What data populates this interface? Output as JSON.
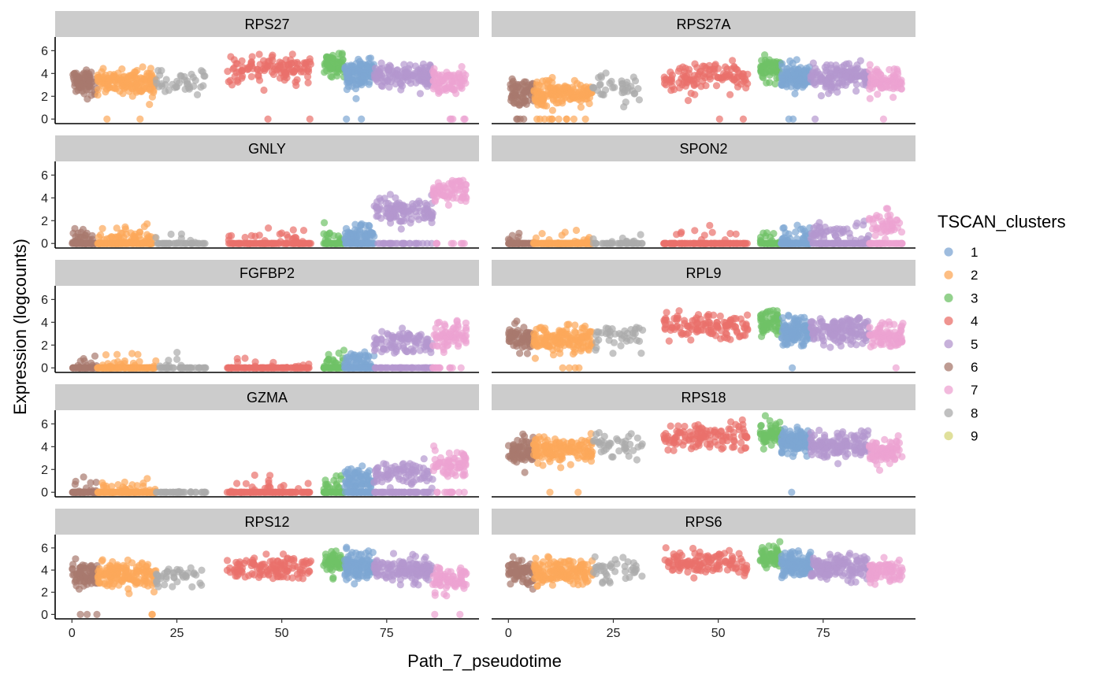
{
  "chart_data": {
    "type": "scatter",
    "xlabel": "Path_7_pseudotime",
    "ylabel": "Expression (logcounts)",
    "xlim": [
      -4,
      97
    ],
    "ylim": [
      -0.4,
      7.2
    ],
    "x_ticks": [
      0,
      25,
      50,
      75
    ],
    "y_ticks": [
      0,
      2,
      4,
      6
    ],
    "grid": false,
    "legend": {
      "title": "TSCAN_clusters",
      "position": "right",
      "entries": [
        {
          "label": "1",
          "color": "#7ea6d3"
        },
        {
          "label": "2",
          "color": "#fca85a"
        },
        {
          "label": "3",
          "color": "#6fc267"
        },
        {
          "label": "4",
          "color": "#e9706b"
        },
        {
          "label": "5",
          "color": "#b497ce"
        },
        {
          "label": "6",
          "color": "#a8796d"
        },
        {
          "label": "7",
          "color": "#eda3d2"
        },
        {
          "label": "8",
          "color": "#ababab"
        },
        {
          "label": "9",
          "color": "#d6d67a"
        }
      ]
    },
    "cluster_x_ranges": {
      "6": [
        0,
        6
      ],
      "2": [
        6,
        20
      ],
      "8": [
        20,
        32
      ],
      "4": [
        37,
        57
      ],
      "3": [
        60,
        65
      ],
      "1": [
        65,
        72
      ],
      "5": [
        72,
        86
      ],
      "7": [
        86,
        94
      ]
    },
    "panels": [
      {
        "title": "RPS27",
        "means": {
          "6": 3.2,
          "2": 3.2,
          "8": 3.3,
          "4": 4.4,
          "3": 4.6,
          "1": 4.0,
          "5": 3.8,
          "7": 3.3
        },
        "zero_frac": {
          "6": 0,
          "2": 0.01,
          "8": 0,
          "4": 0.01,
          "3": 0,
          "1": 0.01,
          "5": 0,
          "7": 0.02
        }
      },
      {
        "title": "RPS27A",
        "means": {
          "6": 2.3,
          "2": 2.2,
          "8": 2.8,
          "4": 3.7,
          "3": 4.4,
          "1": 3.6,
          "5": 3.7,
          "7": 3.2
        },
        "zero_frac": {
          "6": 0.08,
          "2": 0.1,
          "8": 0.02,
          "4": 0.02,
          "3": 0,
          "1": 0.01,
          "5": 0.01,
          "7": 0.02
        }
      },
      {
        "title": "GNLY",
        "means": {
          "6": 0.3,
          "2": 0.6,
          "8": 0.4,
          "4": 0.5,
          "3": 0.4,
          "1": 0.8,
          "5": 2.8,
          "7": 4.6
        },
        "zero_frac": {
          "6": 0.7,
          "2": 0.6,
          "8": 0.7,
          "4": 0.75,
          "3": 0.6,
          "1": 0.45,
          "5": 0.25,
          "7": 0.05
        }
      },
      {
        "title": "SPON2",
        "means": {
          "6": 0.2,
          "2": 0.3,
          "8": 0.3,
          "4": 0.6,
          "3": 0.5,
          "1": 0.6,
          "5": 1.0,
          "7": 1.7
        },
        "zero_frac": {
          "6": 0.9,
          "2": 0.9,
          "8": 0.85,
          "4": 0.9,
          "3": 0.8,
          "1": 0.7,
          "5": 0.6,
          "7": 0.45
        }
      },
      {
        "title": "FGFBP2",
        "means": {
          "6": 0.3,
          "2": 0.3,
          "8": 0.2,
          "4": 0.4,
          "3": 0.5,
          "1": 0.5,
          "5": 2.3,
          "7": 2.9
        },
        "zero_frac": {
          "6": 0.85,
          "2": 0.85,
          "8": 0.9,
          "4": 0.85,
          "3": 0.75,
          "1": 0.65,
          "5": 0.3,
          "7": 0.15
        }
      },
      {
        "title": "RPL9",
        "means": {
          "6": 2.6,
          "2": 2.5,
          "8": 2.8,
          "4": 3.6,
          "3": 4.0,
          "1": 3.2,
          "5": 3.3,
          "7": 2.8
        },
        "zero_frac": {
          "6": 0.02,
          "2": 0.02,
          "8": 0,
          "4": 0.01,
          "3": 0,
          "1": 0.01,
          "5": 0.01,
          "7": 0.02
        }
      },
      {
        "title": "GZMA",
        "means": {
          "6": 0.3,
          "2": 0.4,
          "8": 0.2,
          "4": 0.4,
          "3": 0.4,
          "1": 1.0,
          "5": 1.7,
          "7": 2.5
        },
        "zero_frac": {
          "6": 0.8,
          "2": 0.8,
          "8": 0.9,
          "4": 0.85,
          "3": 0.75,
          "1": 0.45,
          "5": 0.3,
          "7": 0.1
        }
      },
      {
        "title": "RPS18",
        "means": {
          "6": 3.6,
          "2": 3.7,
          "8": 4.2,
          "4": 4.8,
          "3": 4.9,
          "1": 4.4,
          "5": 4.2,
          "7": 3.6
        },
        "zero_frac": {
          "6": 0,
          "2": 0.01,
          "8": 0,
          "4": 0,
          "3": 0,
          "1": 0.01,
          "5": 0,
          "7": 0
        }
      },
      {
        "title": "RPS12",
        "means": {
          "6": 3.6,
          "2": 3.6,
          "8": 3.6,
          "4": 4.2,
          "3": 4.7,
          "1": 4.3,
          "5": 4.0,
          "7": 3.2
        },
        "zero_frac": {
          "6": 0.01,
          "2": 0.01,
          "8": 0,
          "4": 0,
          "3": 0,
          "1": 0,
          "5": 0,
          "7": 0.01
        }
      },
      {
        "title": "RPS6",
        "means": {
          "6": 3.8,
          "2": 3.8,
          "8": 4.0,
          "4": 4.7,
          "3": 5.2,
          "1": 4.5,
          "5": 4.2,
          "7": 3.8
        },
        "zero_frac": {
          "6": 0,
          "2": 0,
          "8": 0,
          "4": 0,
          "3": 0,
          "1": 0,
          "5": 0,
          "7": 0
        }
      }
    ]
  }
}
